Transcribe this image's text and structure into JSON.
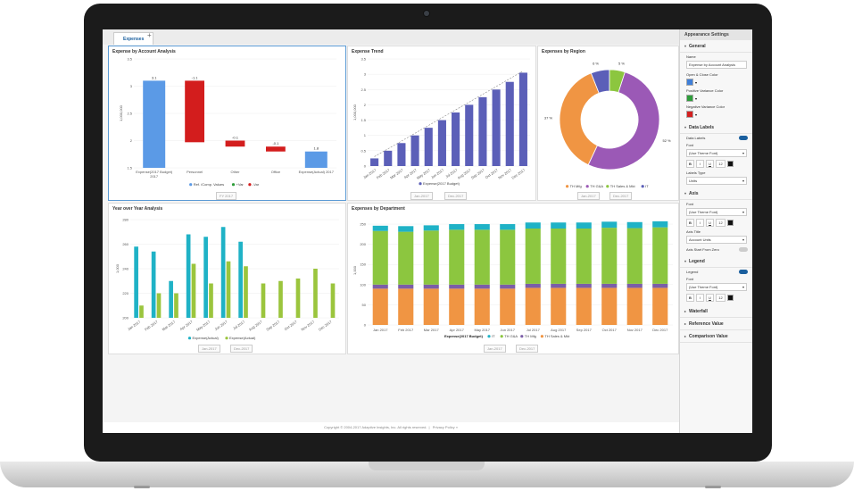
{
  "tab": {
    "label": "Expenses",
    "add_label": "+"
  },
  "settings": {
    "title": "Appearance Settings",
    "general": {
      "header": "General",
      "name_label": "Name",
      "name_value": "Expense by Account Analysis",
      "open_close_label": "Open & Close Color",
      "open_close_color": "#3f7fd8",
      "pos_label": "Positive Variance Color",
      "pos_color": "#2e9d3a",
      "neg_label": "Negative Variance Color",
      "neg_color": "#d32020"
    },
    "data_labels": {
      "header": "Data Labels",
      "toggle_label": "Data Labels",
      "font_label": "Font",
      "font_value": "(Use Theme Font)",
      "font_size": "12",
      "labels_type_label": "Labels Type",
      "labels_type_value": "Units"
    },
    "axis": {
      "header": "Axis",
      "font_label": "Font",
      "font_value": "(Use Theme Font)",
      "font_size": "12",
      "axis_title_label": "Axis Title",
      "axis_title_value": "Account Units",
      "start_zero_label": "Axis Start From Zero"
    },
    "legend": {
      "header": "Legend",
      "toggle_label": "Legend",
      "font_label": "Font",
      "font_value": "(Use Theme Font)",
      "font_size": "12"
    },
    "waterfall": {
      "header": "Waterfall"
    },
    "reference": {
      "header": "Reference Value"
    },
    "comparison": {
      "header": "Comparison Value"
    }
  },
  "footer": {
    "copyright": "Copyright © 2004-2017 Adaptive Insights, Inc. All rights reserved.",
    "privacy": "Privacy Policy »"
  },
  "panels": {
    "waterfall_title": "Expense by Account Analysis",
    "trend_title": "Expense Trend",
    "region_title": "Expenses by Region",
    "yoy_title": "Year over Year Analysis",
    "dept_title": "Expenses by Department",
    "waterfall_filter": "FY 2017",
    "trend_filter_from": "Jan-2017",
    "trend_filter_to": "Dec-2017",
    "region_filter_from": "Jan-2017",
    "region_filter_to": "Dec-2017",
    "yoy_filter_from": "Jan-2017",
    "yoy_filter_to": "Dec-2017",
    "dept_filter_from": "Jan-2017",
    "dept_filter_to": "Dec-2017"
  },
  "chart_data": [
    {
      "type": "bar",
      "subtype": "waterfall",
      "title": "Expense by Account Analysis",
      "ylabel": "1,000,000",
      "ylim": [
        1.5,
        3.5
      ],
      "yticks": [
        "3.5",
        "3",
        "2.5",
        "2",
        "1.5"
      ],
      "categories": [
        "Expense(2017 Budget) 2017",
        "Personnel",
        "Other",
        "Office",
        "Expense(Actual) 2017"
      ],
      "bars": [
        {
          "kind": "ref",
          "start": 1.5,
          "end": 3.1,
          "label": "3.1"
        },
        {
          "kind": "neg",
          "start": 3.1,
          "end": 1.97,
          "label": "-1.1"
        },
        {
          "kind": "neg",
          "start": 2.0,
          "end": 1.89,
          "label": "-0.1"
        },
        {
          "kind": "neg",
          "start": 1.89,
          "end": 1.8,
          "label": "-0.1"
        },
        {
          "kind": "ref",
          "start": 1.5,
          "end": 1.8,
          "label": "1.8"
        }
      ],
      "legend": [
        "Ref. /Comp. Values",
        "+Var",
        "-Var"
      ],
      "colors": {
        "ref": "#5b9ae6",
        "pos": "#2e9d3a",
        "neg": "#d31d1d"
      }
    },
    {
      "type": "bar",
      "title": "Expense Trend",
      "ylabel": "1,000,000",
      "ylim": [
        0,
        3.5
      ],
      "yticks": [
        "3.5",
        "3",
        "2.5",
        "2",
        "1.5",
        "1",
        "0.5",
        "0"
      ],
      "categories": [
        "Jan 2017",
        "Feb 2017",
        "Mar 2017",
        "Apr 2017",
        "May 2017",
        "Jun 2017",
        "Jul 2017",
        "Aug 2017",
        "Sep 2017",
        "Oct 2017",
        "Nov 2017",
        "Dec 2017"
      ],
      "values": [
        0.25,
        0.5,
        0.75,
        1.0,
        1.25,
        1.5,
        1.75,
        2.0,
        2.25,
        2.5,
        2.75,
        3.05
      ],
      "legend": [
        "Expense(2017 Budget)"
      ],
      "color": "#5b5fb8"
    },
    {
      "type": "pie",
      "subtype": "donut",
      "title": "Expenses by Region",
      "slices": [
        {
          "name": "TH Mfg",
          "value": 37,
          "label": "37 %",
          "color": "#f09543"
        },
        {
          "name": "TH G&A",
          "value": 52,
          "label": "52 %",
          "color": "#9b59b6"
        },
        {
          "name": "TH Sales & Mkt",
          "value": 5,
          "label": "5 %",
          "color": "#8cc63f"
        },
        {
          "name": "IT",
          "value": 6,
          "label": "6 %",
          "color": "#5b5fb8"
        }
      ]
    },
    {
      "type": "bar",
      "title": "Year over Year Analysis",
      "ylabel": "1,000",
      "ylim": [
        200,
        280
      ],
      "yticks": [
        "280",
        "260",
        "240",
        "220",
        "200"
      ],
      "categories": [
        "Jan 2017",
        "Feb 2017",
        "Mar 2017",
        "Apr 2017",
        "May 2017",
        "Jun 2017",
        "Jul 2017",
        "Aug 2017",
        "Sep 2017",
        "Oct 2017",
        "Nov 2017",
        "Dec 2017"
      ],
      "series": [
        {
          "name": "Expense(Actual)",
          "color": "#1fb2c6",
          "values": [
            258,
            254,
            230,
            268,
            266,
            274,
            262,
            null,
            null,
            null,
            null,
            null
          ]
        },
        {
          "name": "Expense(Actual)",
          "color": "#9bc53d",
          "values": [
            210,
            220,
            220,
            244,
            228,
            246,
            242,
            228,
            230,
            232,
            240,
            228
          ]
        }
      ]
    },
    {
      "type": "bar",
      "subtype": "stacked",
      "title": "Expenses by Department",
      "ylabel": "1,000",
      "ylim": [
        0,
        270
      ],
      "yticks": [
        "250",
        "200",
        "150",
        "100",
        "50",
        "0"
      ],
      "categories": [
        "Jan 2017",
        "Feb 2017",
        "Mar 2017",
        "Apr 2017",
        "May 2017",
        "Jun 2017",
        "Jul 2017",
        "Aug 2017",
        "Sep 2017",
        "Oct 2017",
        "Nov 2017",
        "Dec 2017"
      ],
      "series": [
        {
          "name": "TH Sales & Mkt",
          "color": "#f09543",
          "values": [
            90,
            90,
            90,
            90,
            90,
            90,
            92,
            92,
            92,
            92,
            92,
            92
          ]
        },
        {
          "name": "TH Mfg",
          "color": "#7b5ea7",
          "values": [
            10,
            10,
            10,
            10,
            10,
            10,
            10,
            10,
            10,
            10,
            10,
            10
          ]
        },
        {
          "name": "TH G&A",
          "color": "#8cc63f",
          "values": [
            133,
            131,
            134,
            136,
            136,
            136,
            137,
            137,
            137,
            139,
            138,
            140
          ]
        },
        {
          "name": "IT",
          "color": "#1fb2c6",
          "values": [
            13,
            14,
            13,
            14,
            14,
            14,
            15,
            15,
            15,
            15,
            15,
            15
          ]
        }
      ],
      "legend": [
        "Expense(2017 Budget)",
        "IT",
        "TH G&A",
        "TH Mfg",
        "TH Sales & Mkt"
      ]
    }
  ]
}
